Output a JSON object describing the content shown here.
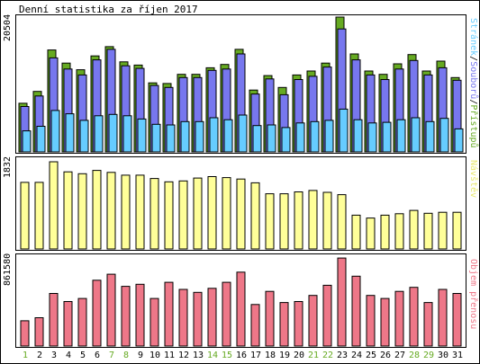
{
  "title": "Denní statistika za říjen 2017",
  "colors": {
    "pristupy": "#66aa22",
    "soubory": "#7777ee",
    "stranek": "#66ccff",
    "navstev": "#ffff99",
    "objem": "#ee7788",
    "weekend_day": "#66aa22",
    "weekday": "#000000"
  },
  "right_labels": {
    "stranek": "Stránek",
    "sep1": "/",
    "soubory": "Souborů",
    "sep2": "/",
    "pristupy": "Přístupů",
    "navstev": "Návštěv",
    "objem": "Objem přenosu"
  },
  "chart_data": [
    {
      "type": "bar",
      "name": "hits-files-pages",
      "ymax_label": "20504",
      "ylim": [
        0,
        20504
      ],
      "categories": [
        "1",
        "2",
        "3",
        "4",
        "5",
        "6",
        "7",
        "8",
        "9",
        "10",
        "11",
        "12",
        "13",
        "14",
        "15",
        "16",
        "17",
        "18",
        "19",
        "20",
        "21",
        "22",
        "23",
        "24",
        "25",
        "26",
        "27",
        "28",
        "29",
        "30",
        "31"
      ],
      "weekend": [
        true,
        false,
        false,
        false,
        false,
        false,
        true,
        true,
        false,
        false,
        false,
        false,
        false,
        true,
        true,
        false,
        false,
        false,
        false,
        false,
        true,
        true,
        false,
        false,
        false,
        false,
        false,
        true,
        true,
        false,
        false
      ],
      "series": [
        {
          "name": "Přístupů",
          "values": [
            7400,
            9200,
            15500,
            13500,
            12500,
            14600,
            16000,
            13700,
            13200,
            10500,
            10400,
            11800,
            11800,
            12800,
            13300,
            15600,
            9400,
            11600,
            9800,
            11700,
            12300,
            13500,
            20500,
            14900,
            12300,
            11800,
            13400,
            14800,
            12300,
            13800,
            11300
          ]
        },
        {
          "name": "Souborů",
          "values": [
            6900,
            8500,
            14300,
            12600,
            11700,
            14000,
            15600,
            13100,
            12700,
            10100,
            9800,
            11300,
            11300,
            12400,
            12600,
            14900,
            8800,
            11100,
            8700,
            11000,
            11500,
            12900,
            18700,
            14000,
            11700,
            11000,
            12600,
            13900,
            11700,
            12800,
            10900
          ]
        },
        {
          "name": "Stránek",
          "values": [
            3200,
            3900,
            6300,
            5800,
            4800,
            5500,
            5700,
            5500,
            5000,
            4200,
            4100,
            4600,
            4600,
            5200,
            4900,
            5600,
            4000,
            4100,
            3700,
            4400,
            4600,
            4800,
            6500,
            4900,
            4400,
            4500,
            4900,
            5200,
            4600,
            5100,
            3500
          ]
        }
      ]
    },
    {
      "type": "bar",
      "name": "visits",
      "ymax_label": "1832",
      "ylim": [
        0,
        1832
      ],
      "categories": [
        "1",
        "2",
        "3",
        "4",
        "5",
        "6",
        "7",
        "8",
        "9",
        "10",
        "11",
        "12",
        "13",
        "14",
        "15",
        "16",
        "17",
        "18",
        "19",
        "20",
        "21",
        "22",
        "23",
        "24",
        "25",
        "26",
        "27",
        "28",
        "29",
        "30",
        "31"
      ],
      "series": [
        {
          "name": "Návštěv",
          "values": [
            1400,
            1400,
            1832,
            1620,
            1580,
            1650,
            1610,
            1550,
            1550,
            1480,
            1410,
            1430,
            1490,
            1520,
            1500,
            1470,
            1390,
            1160,
            1160,
            1200,
            1230,
            1190,
            1140,
            710,
            650,
            710,
            740,
            810,
            750,
            770,
            770
          ]
        }
      ]
    },
    {
      "type": "bar",
      "name": "traffic",
      "ymax_label": "861580",
      "ylim": [
        0,
        861580
      ],
      "categories": [
        "1",
        "2",
        "3",
        "4",
        "5",
        "6",
        "7",
        "8",
        "9",
        "10",
        "11",
        "12",
        "13",
        "14",
        "15",
        "16",
        "17",
        "18",
        "19",
        "20",
        "21",
        "22",
        "23",
        "24",
        "25",
        "26",
        "27",
        "28",
        "29",
        "30",
        "31"
      ],
      "series": [
        {
          "name": "Objem přenosu",
          "values": [
            250000,
            280000,
            520000,
            440000,
            470000,
            650000,
            710000,
            590000,
            610000,
            470000,
            630000,
            560000,
            530000,
            570000,
            630000,
            730000,
            410000,
            540000,
            430000,
            440000,
            500000,
            600000,
            870000,
            690000,
            500000,
            470000,
            540000,
            580000,
            430000,
            560000,
            520000
          ]
        }
      ]
    }
  ]
}
